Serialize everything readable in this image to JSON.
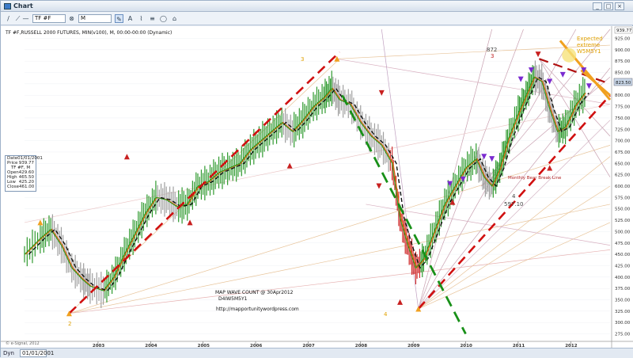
{
  "window": {
    "title": "Chart",
    "symbol_value": "TF #F",
    "period_value": "M",
    "min_label": "_",
    "max_label": "□",
    "close_label": "×"
  },
  "header_line": "TF #F,RUSSELL 2000 FUTURES, MIN(v100), M, 00:00-00:00 (Dynamic)",
  "data_window": {
    "date_label": "Date",
    "date_value": "01/01/2001",
    "price_label": "Price",
    "price_value": "939.77",
    "symbol": "TF #F, M",
    "rows": [
      {
        "label": "Open",
        "value": "429.60"
      },
      {
        "label": "High",
        "value": "465.50"
      },
      {
        "label": "Low",
        "value": "425.20"
      },
      {
        "label": "Close",
        "value": "461.00"
      }
    ]
  },
  "annotations": {
    "expected_extreme": [
      "Expected",
      "extreme",
      "W5M5Y1"
    ],
    "bear_break": "Monthly Bear Break Line",
    "wave_label_4": "4",
    "wave_label_4_price": "597.10",
    "wave_label_top": "872",
    "wave_label_top_num": "3",
    "wave_label_2003": "2",
    "wave_label_2007": "3",
    "wave_label_2009": "4",
    "map_count": "MAP WAVE COUNT @ 30Apr2012",
    "map_code": "D4IW5M5Y1",
    "url": "http://mapportunitywordpress.com",
    "copyright": "© e-Signal, 2012"
  },
  "bottom": {
    "dyn_label": "Dyn",
    "date_value": "01/01/2001"
  },
  "chart_data": {
    "type": "line",
    "title": "TF #F,RUSSELL 2000 FUTURES, MIN(v100), M, 00:00-00:00 (Dynamic)",
    "x_tick_labels": [
      "2003",
      "2004",
      "2005",
      "2006",
      "2007",
      "2008",
      "2009",
      "2010",
      "2011",
      "2012"
    ],
    "y_tick_labels": [
      "275.00",
      "300.00",
      "325.00",
      "350.00",
      "375.00",
      "400.00",
      "425.00",
      "450.00",
      "475.00",
      "500.00",
      "525.00",
      "550.00",
      "575.00",
      "600.00",
      "625.00",
      "650.00",
      "675.00",
      "700.00",
      "725.00",
      "750.00",
      "775.00",
      "800.00",
      "825.00",
      "850.00",
      "875.00",
      "900.00",
      "925.00"
    ],
    "ylim": [
      262,
      945
    ],
    "xlim": [
      2001.6,
      2012.75
    ],
    "price_labels": {
      "top": "939.77",
      "last": "823.50"
    },
    "series": [
      {
        "name": "",
        "x": [
          2001.6,
          2001.9,
          2002.1,
          2002.3,
          2002.5,
          2002.7,
          2002.85,
          2003.1,
          2003.3,
          2003.5,
          2003.7,
          2003.9,
          2004.1,
          2004.3,
          2004.5,
          2004.7,
          2004.9,
          2005.1,
          2005.3,
          2005.5,
          2005.7,
          2005.9,
          2006.1,
          2006.3,
          2006.5,
          2006.7,
          2006.9,
          2007.1,
          2007.3,
          2007.45,
          2007.6,
          2007.8,
          2008.0,
          2008.2,
          2008.4,
          2008.6,
          2008.75,
          2008.9,
          2009.05,
          2009.2,
          2009.4,
          2009.6,
          2009.8,
          2010.0,
          2010.2,
          2010.35,
          2010.5,
          2010.65,
          2010.8,
          2011.0,
          2011.15,
          2011.3,
          2011.45,
          2011.6,
          2011.75,
          2011.9,
          2012.1,
          2012.3
        ],
        "values": [
          450,
          485,
          505,
          470,
          420,
          395,
          380,
          370,
          400,
          450,
          495,
          540,
          575,
          570,
          555,
          560,
          600,
          610,
          630,
          640,
          650,
          680,
          700,
          720,
          740,
          720,
          745,
          775,
          795,
          815,
          790,
          780,
          740,
          710,
          690,
          650,
          530,
          470,
          420,
          440,
          500,
          560,
          600,
          640,
          660,
          620,
          600,
          640,
          700,
          760,
          800,
          840,
          830,
          770,
          720,
          730,
          780,
          810
        ]
      }
    ]
  }
}
